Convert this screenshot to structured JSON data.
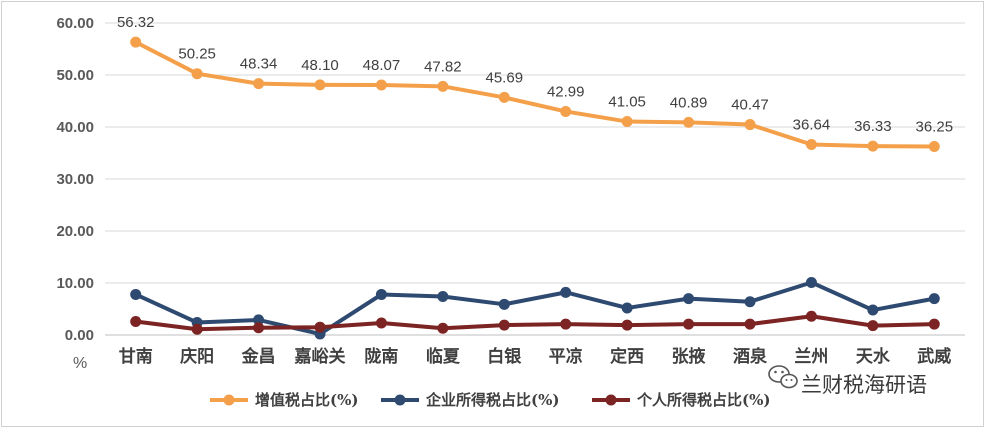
{
  "chart_data": {
    "type": "line",
    "title": "",
    "xlabel": "",
    "ylabel": "%",
    "ylim": [
      0,
      60
    ],
    "yticks": [
      "0.00",
      "10.00",
      "20.00",
      "30.00",
      "40.00",
      "50.00",
      "60.00"
    ],
    "grid": true,
    "legend_position": "bottom",
    "categories": [
      "甘南",
      "庆阳",
      "金昌",
      "嘉峪关",
      "陇南",
      "临夏",
      "白银",
      "平凉",
      "定西",
      "张掖",
      "酒泉",
      "兰州",
      "天水",
      "武威"
    ],
    "series": [
      {
        "name": "增值税占比(%)",
        "color": "#f4a04b",
        "values": [
          56.32,
          50.25,
          48.34,
          48.1,
          48.07,
          47.82,
          45.69,
          42.99,
          41.05,
          40.89,
          40.47,
          36.64,
          36.33,
          36.25
        ],
        "labels": [
          "56.32",
          "50.25",
          "48.34",
          "48.10",
          "48.07",
          "47.82",
          "45.69",
          "42.99",
          "41.05",
          "40.89",
          "40.47",
          "36.64",
          "36.33",
          "36.25"
        ]
      },
      {
        "name": "企业所得税占比(%)",
        "color": "#2e4a70",
        "values": [
          7.8,
          2.4,
          2.9,
          0.2,
          7.8,
          7.4,
          5.9,
          8.2,
          5.2,
          7.0,
          6.4,
          10.1,
          4.8,
          7.0
        ]
      },
      {
        "name": "个人所得税占比(%)",
        "color": "#7b2423",
        "values": [
          2.6,
          1.1,
          1.4,
          1.5,
          2.3,
          1.3,
          1.9,
          2.1,
          1.9,
          2.1,
          2.1,
          3.6,
          1.8,
          2.1
        ]
      }
    ]
  },
  "watermark": {
    "text": "兰财税海研语",
    "icon": "wechat-icon"
  }
}
